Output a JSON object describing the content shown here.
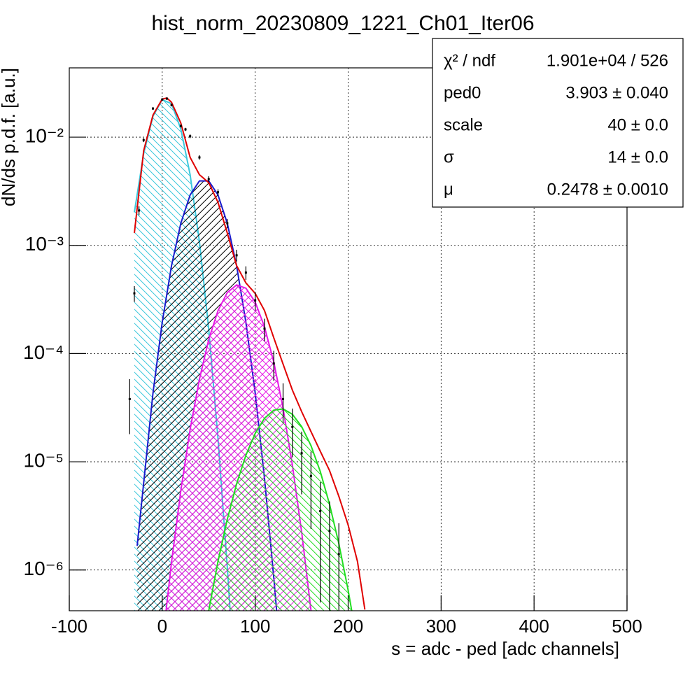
{
  "chart_data": {
    "type": "line",
    "title": "hist_norm_20230809_1221_Ch01_Iter06",
    "x_label": "s = adc - ped [adc channels]",
    "y_label": "dN/ds p.d.f. [a.u.]",
    "log_y": true,
    "grid": true,
    "xlim": [
      -100,
      500
    ],
    "xticks": [
      -100,
      0,
      100,
      200,
      300,
      400,
      500
    ],
    "ylim": [
      4.2e-07,
      0.0437
    ],
    "yticks": [
      {
        "value": 1e-06,
        "label": "10⁻⁶"
      },
      {
        "value": 1e-05,
        "label": "10⁻⁵"
      },
      {
        "value": 0.0001,
        "label": "10⁻⁴"
      },
      {
        "value": 0.001,
        "label": "10⁻³"
      },
      {
        "value": 0.01,
        "label": "10⁻²"
      }
    ],
    "series": [
      {
        "style": "hatched-line",
        "color": "#3cc8dc",
        "hatch_color": "#3cc8dc",
        "hatch": "back",
        "x": [
          -30,
          -20,
          -10,
          0,
          10,
          20,
          30,
          40,
          50,
          60,
          70,
          75
        ],
        "values": [
          0.00202,
          0.00704,
          0.0156,
          0.0222,
          0.0204,
          0.0119,
          0.00449,
          0.00108,
          0.000168,
          1.64e-05,
          1.06e-06,
          2.27e-07
        ]
      },
      {
        "style": "hatched-line",
        "color": "#1a1acc",
        "hatch_color": "#000000",
        "hatch": "forward",
        "x": [
          -27,
          -10,
          0,
          10,
          20,
          30,
          40,
          50,
          60,
          70,
          80,
          90,
          100,
          110,
          120,
          125
        ],
        "values": [
          1.67e-06,
          4.31e-05,
          0.000194,
          0.000649,
          0.0016,
          0.00292,
          0.00394,
          0.00394,
          0.00292,
          0.0016,
          0.000649,
          0.000194,
          4.31e-05,
          7.11e-06,
          8.55e-07,
          2.7e-07
        ]
      },
      {
        "style": "hatched-line",
        "color": "#e61ae6",
        "hatch_color": "#e61ae6",
        "hatch": "cross",
        "x": [
          0,
          10,
          20,
          30,
          40,
          50,
          60,
          70,
          80,
          90,
          100,
          110,
          120,
          130,
          140,
          150,
          160,
          170
        ],
        "values": [
          2.04e-07,
          1.18e-06,
          5.42e-06,
          1.99e-05,
          5.8e-05,
          0.000135,
          0.000249,
          0.000367,
          0.000431,
          0.000402,
          0.000299,
          0.000177,
          8.36e-05,
          3.13e-05,
          9.35e-06,
          2.23e-06,
          4.23e-07,
          6.37e-08
        ]
      },
      {
        "style": "hatched-line",
        "color": "#22dd22",
        "hatch_color": "#22dd22",
        "hatch": "back",
        "x": [
          40,
          50,
          60,
          70,
          80,
          90,
          100,
          110,
          120,
          130,
          140,
          150,
          160,
          170,
          180,
          190,
          200,
          210
        ],
        "values": [
          1.28e-07,
          4.21e-07,
          1.2e-06,
          2.94e-06,
          6.25e-06,
          1.15e-05,
          1.83e-05,
          2.52e-05,
          3e-05,
          3.08e-05,
          2.75e-05,
          2.11e-05,
          1.41e-05,
          8.11e-06,
          4.05e-06,
          1.75e-06,
          6.5e-07,
          2.1e-07
        ]
      },
      {
        "style": "line",
        "color": "#e00000",
        "x": [
          -30,
          -20,
          -10,
          0,
          5,
          10,
          20,
          30,
          40,
          50,
          60,
          70,
          80,
          90,
          100,
          110,
          120,
          130,
          140,
          150,
          160,
          170,
          180,
          190,
          200,
          210,
          218
        ],
        "values": [
          0.0013,
          0.0075,
          0.016,
          0.0225,
          0.023,
          0.021,
          0.0135,
          0.0065,
          0.0045,
          0.0038,
          0.0025,
          0.0013,
          0.00065,
          0.00045,
          0.00036,
          0.00025,
          0.00014,
          8e-05,
          4.6e-05,
          2.9e-05,
          1.9e-05,
          1.25e-05,
          8.3e-06,
          4.8e-06,
          2.6e-06,
          1.2e-06,
          4.3e-07
        ]
      },
      {
        "style": "markers",
        "color": "#000000",
        "x": [
          -35,
          -30,
          -25,
          -20,
          -10,
          0,
          5,
          10,
          20,
          25,
          30,
          40,
          50,
          60,
          70,
          80,
          90,
          100,
          110,
          120,
          130,
          140,
          150,
          160,
          170,
          180,
          190
        ],
        "values": [
          3.8e-05,
          0.00036,
          0.0021,
          0.0094,
          0.0184,
          0.0223,
          0.0227,
          0.0198,
          0.0127,
          0.0118,
          0.0102,
          0.0065,
          0.0041,
          0.0031,
          0.0016,
          0.00081,
          0.00056,
          0.00031,
          0.00017,
          8.1e-05,
          3.8e-05,
          2.1e-05,
          1.2e-05,
          7.4e-06,
          3.5e-06,
          2.3e-06,
          1.4e-06
        ],
        "errors": [
          2e-05,
          6e-05,
          0.0002,
          0.0004,
          0.0005,
          0.0006,
          0.0006,
          0.0005,
          0.0004,
          0.0004,
          0.0004,
          0.0003,
          0.00025,
          0.0002,
          0.00015,
          0.0001,
          8e-05,
          6e-05,
          4e-05,
          2.5e-05,
          1.5e-05,
          1e-05,
          7e-06,
          5e-06,
          3e-06,
          2e-06,
          1.3e-06
        ]
      }
    ],
    "stats": [
      {
        "label": "χ² / ndf",
        "value": "1.901e+04 / 526"
      },
      {
        "label": "ped0",
        "value": "3.903 ± 0.040"
      },
      {
        "label": "scale",
        "value": "40 ± 0.0"
      },
      {
        "label": "σ",
        "value": "14 ± 0.0"
      },
      {
        "label": "μ",
        "value": "0.2478 ± 0.0010"
      }
    ]
  }
}
